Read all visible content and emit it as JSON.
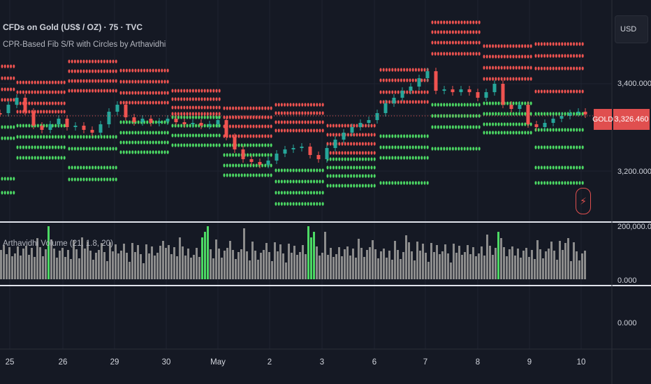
{
  "header": {
    "title": "CFDs on Gold (US$ / OZ) · 75 · TVC",
    "indicator_name": "CPR-Based Fib S/R with Circles by Arthavidhi",
    "volume_indicator": "Arthavidhi Volume (21, 1.8, 20)"
  },
  "price_axis": {
    "currency": "USD",
    "labels": [
      "3,400.000",
      "3,200.000"
    ],
    "symbol": "GOLD",
    "last_price": "3,326.460"
  },
  "volume_axis": {
    "labels": [
      "200,000.000",
      "0.000"
    ]
  },
  "lower_pane_axis": {
    "labels": [
      "0.000"
    ]
  },
  "time_axis": {
    "labels": [
      "25",
      "26",
      "29",
      "30",
      "May",
      "2",
      "3",
      "6",
      "7",
      "8",
      "9",
      "10"
    ]
  },
  "colors": {
    "background": "#151924",
    "resistance": "#ef5350",
    "support": "#4cd964",
    "candle_up": "#26a69a",
    "candle_down": "#ef5350",
    "volume": "#8c8c8c",
    "volume_spike": "#4cd964",
    "last_price_tag": "#e04f4f"
  },
  "icons": {
    "alert": "lightning-bolt-icon"
  }
}
